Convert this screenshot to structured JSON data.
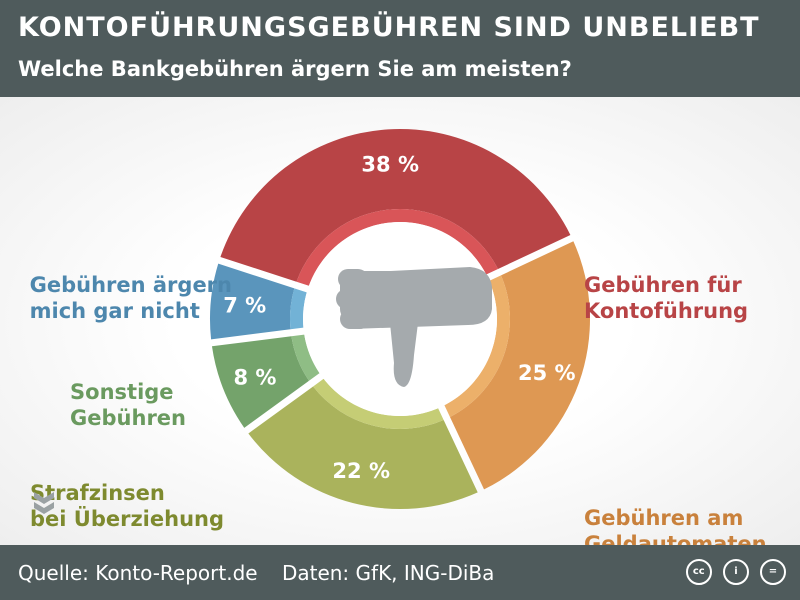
{
  "header": {
    "title": "KONTOFÜHRUNGSGEBÜHREN SIND UNBELIEBT",
    "subtitle": "Welche Bankgebühren ärgern Sie am meisten?"
  },
  "chart_data": {
    "type": "pie",
    "unit": "%",
    "slices": [
      {
        "label": "Gebühren für Kontoführung",
        "lines": [
          "Gebühren für",
          "Kontoführung"
        ],
        "value": 38,
        "value_label": "38 %",
        "color": "#b84446",
        "inner_color": "#d95558"
      },
      {
        "label": "Gebühren am Geldautomaten",
        "lines": [
          "Gebühren am",
          "Geldautomaten"
        ],
        "value": 25,
        "value_label": "25 %",
        "color": "#de9853",
        "inner_color": "#ecb06a"
      },
      {
        "label": "Strafzinsen bei Überziehung",
        "lines": [
          "Strafzinsen",
          "bei Überziehung"
        ],
        "value": 22,
        "value_label": "22 %",
        "color": "#aab35c",
        "inner_color": "#c5cd75"
      },
      {
        "label": "Sonstige Gebühren",
        "lines": [
          "Sonstige",
          "Gebühren"
        ],
        "value": 8,
        "value_label": "8 %",
        "color": "#74a36b",
        "inner_color": "#8fbd85"
      },
      {
        "label": "Gebühren ärgern mich gar nicht",
        "lines": [
          "Gebühren ärgern",
          "mich gar nicht"
        ],
        "value": 7,
        "value_label": "7 %",
        "color": "#5a95bc",
        "inner_color": "#72b2d6"
      }
    ],
    "label_colors": [
      "#b84446",
      "#c9813c",
      "#7e8a2f",
      "#6a9a5f",
      "#4d87ad"
    ],
    "center_icon": "thumbs-down-icon"
  },
  "footer": {
    "source": "Quelle: Konto-Report.de",
    "data_credit": "Daten: GfK, ING-DiBa",
    "icons": [
      "cc-icon",
      "attribution-icon",
      "no-derivatives-icon"
    ]
  }
}
